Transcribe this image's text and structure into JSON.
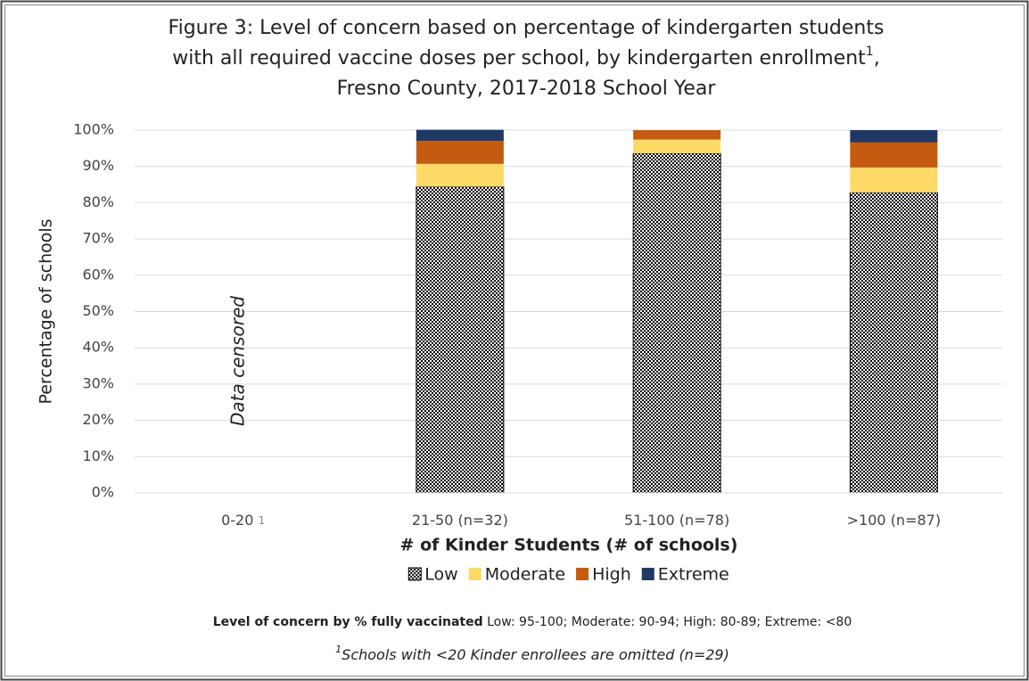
{
  "chart_data": {
    "type": "stacked_bar",
    "title_lines": [
      [
        {
          "text": "Figure 3: Level of concern based on percentage of kindergarten students"
        }
      ],
      [
        {
          "text": "with all required vaccine doses per school, by kindergarten enrollment"
        },
        {
          "text": "1",
          "sup": true
        },
        {
          "text": ","
        }
      ],
      [
        {
          "text": "Fresno County, 2017-2018 School Year"
        }
      ]
    ],
    "ylabel": "Percentage of schools",
    "xlabel": "# of Kinder Students (# of schools)",
    "categories": [
      "0-20",
      "21-50 (n=32)",
      "51-100 (n=78)",
      ">100 (n=87)"
    ],
    "category_footnote_marks": [
      "1",
      null,
      null,
      null
    ],
    "annotation": "Data censored",
    "series": [
      {
        "name": "Low",
        "color": "#000000",
        "pattern": "checker",
        "values": [
          null,
          84.4,
          93.6,
          82.8
        ]
      },
      {
        "name": "Moderate",
        "color": "#ffd966",
        "values": [
          null,
          6.3,
          3.8,
          6.9
        ]
      },
      {
        "name": "High",
        "color": "#c55a11",
        "values": [
          null,
          6.3,
          2.6,
          6.9
        ]
      },
      {
        "name": "Extreme",
        "color": "#203864",
        "values": [
          null,
          3.1,
          0,
          3.4
        ]
      }
    ],
    "ylim": [
      0,
      100
    ],
    "yticks": [
      {
        "value": 0,
        "label": "0%"
      },
      {
        "value": 10,
        "label": "10%"
      },
      {
        "value": 20,
        "label": "20%"
      },
      {
        "value": 30,
        "label": "30%"
      },
      {
        "value": 40,
        "label": "40%"
      },
      {
        "value": 50,
        "label": "50%"
      },
      {
        "value": 60,
        "label": "60%"
      },
      {
        "value": 70,
        "label": "70%"
      },
      {
        "value": 80,
        "label": "80%"
      },
      {
        "value": 90,
        "label": "90%"
      },
      {
        "value": 100,
        "label": "100%"
      }
    ],
    "grid": true,
    "legend": "bottom",
    "concern_note": {
      "label": "Level of concern by % fully vaccinated",
      "text": "Low: 95-100; Moderate: 90-94; High: 80-89; Extreme: <80"
    },
    "footnote": {
      "mark": "1",
      "text": "Schools with <20 Kinder enrollees are omitted (n=29)"
    }
  }
}
